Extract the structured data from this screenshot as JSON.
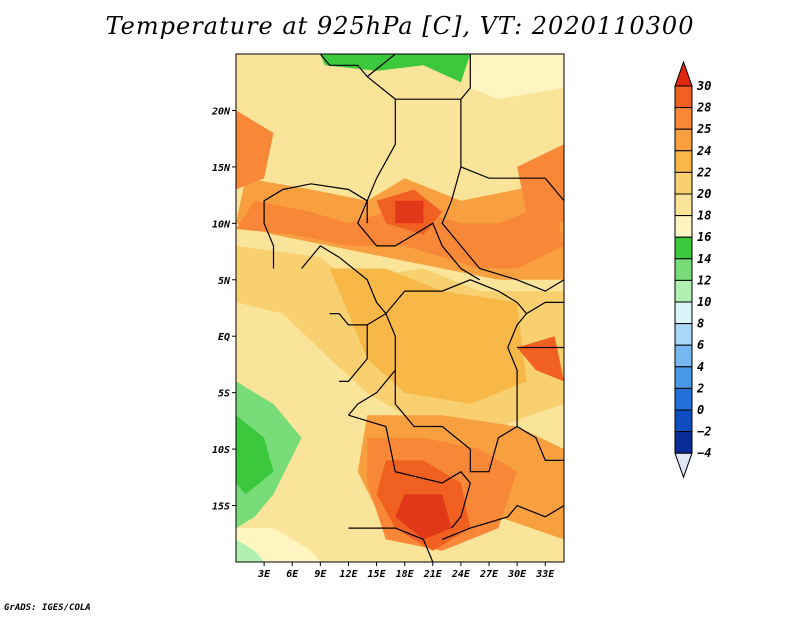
{
  "title": "Temperature at 925hPa [C], VT: 2020110300",
  "credit": "GrADS: IGES/COLA",
  "map": {
    "lat_range": [
      -20,
      25
    ],
    "lon_range": [
      0,
      35
    ],
    "lat_ticks": [
      {
        "value": 20,
        "label": "20N"
      },
      {
        "value": 15,
        "label": "15N"
      },
      {
        "value": 10,
        "label": "10N"
      },
      {
        "value": 5,
        "label": "5N"
      },
      {
        "value": 0,
        "label": "EQ"
      },
      {
        "value": -5,
        "label": "5S"
      },
      {
        "value": -10,
        "label": "10S"
      },
      {
        "value": -15,
        "label": "15S"
      }
    ],
    "lon_ticks": [
      {
        "value": 3,
        "label": "3E"
      },
      {
        "value": 6,
        "label": "6E"
      },
      {
        "value": 9,
        "label": "9E"
      },
      {
        "value": 12,
        "label": "12E"
      },
      {
        "value": 15,
        "label": "15E"
      },
      {
        "value": 18,
        "label": "18E"
      },
      {
        "value": 21,
        "label": "21E"
      },
      {
        "value": 24,
        "label": "24E"
      },
      {
        "value": 27,
        "label": "27E"
      },
      {
        "value": 30,
        "label": "30E"
      },
      {
        "value": 33,
        "label": "33E"
      }
    ]
  },
  "colorbar": {
    "levels": [
      "30",
      "28",
      "25",
      "24",
      "22",
      "20",
      "18",
      "16",
      "14",
      "12",
      "10",
      "8",
      "6",
      "4",
      "2",
      "0",
      "−2",
      "−4"
    ],
    "colors": [
      "#f06020",
      "#f88838",
      "#f8a040",
      "#f8b848",
      "#f8d070",
      "#fae49a",
      "#fff5c0",
      "#3cc83c",
      "#78dc78",
      "#b0f0b0",
      "#d8f4f8",
      "#a8d8f8",
      "#78b8f0",
      "#4898e8",
      "#2070d8",
      "#0f4cc0",
      "#0a2c98"
    ],
    "top_arrow_color": "#e02810",
    "bottom_arrow_color": "#e0e8f8"
  },
  "zones": [
    {
      "color": "#fae49a",
      "points": [
        [
          0,
          25
        ],
        [
          35,
          25
        ],
        [
          35,
          -20
        ],
        [
          0,
          -20
        ]
      ]
    },
    {
      "color": "#f8d070",
      "points": [
        [
          0,
          8
        ],
        [
          9,
          7
        ],
        [
          12,
          5
        ],
        [
          20,
          6
        ],
        [
          26,
          4
        ],
        [
          35,
          4
        ],
        [
          35,
          -6
        ],
        [
          28,
          -8
        ],
        [
          20,
          -8
        ],
        [
          14,
          -5
        ],
        [
          10,
          -2
        ],
        [
          5,
          2
        ],
        [
          0,
          3
        ]
      ]
    },
    {
      "color": "#f8b848",
      "points": [
        [
          10,
          6
        ],
        [
          16,
          6
        ],
        [
          22,
          4
        ],
        [
          30,
          3
        ],
        [
          31,
          -4
        ],
        [
          25,
          -6
        ],
        [
          18,
          -5
        ],
        [
          14,
          -2
        ],
        [
          12,
          2
        ]
      ]
    },
    {
      "color": "#f8a040",
      "points": [
        [
          1,
          14
        ],
        [
          8,
          13
        ],
        [
          14,
          12
        ],
        [
          18,
          14
        ],
        [
          24,
          12
        ],
        [
          30,
          13
        ],
        [
          35,
          14
        ],
        [
          35,
          5
        ],
        [
          28,
          5
        ],
        [
          22,
          6
        ],
        [
          16,
          7
        ],
        [
          10,
          8
        ],
        [
          4,
          9
        ],
        [
          0,
          10
        ]
      ]
    },
    {
      "color": "#f88838",
      "points": [
        [
          2,
          12
        ],
        [
          8,
          11
        ],
        [
          12,
          10
        ],
        [
          16,
          11
        ],
        [
          20,
          11
        ],
        [
          24,
          10
        ],
        [
          28,
          10
        ],
        [
          34,
          12
        ],
        [
          35,
          8
        ],
        [
          30,
          6
        ],
        [
          26,
          6
        ],
        [
          22,
          7
        ],
        [
          18,
          8
        ],
        [
          12,
          8
        ],
        [
          6,
          9
        ],
        [
          0,
          9.5
        ]
      ]
    },
    {
      "color": "#f88838",
      "points": [
        [
          0,
          20
        ],
        [
          4,
          18
        ],
        [
          3,
          14
        ],
        [
          0,
          13
        ]
      ]
    },
    {
      "color": "#f88838",
      "points": [
        [
          30,
          15
        ],
        [
          35,
          17
        ],
        [
          35,
          10
        ],
        [
          31,
          11
        ]
      ]
    },
    {
      "color": "#f8a040",
      "points": [
        [
          14,
          -7
        ],
        [
          22,
          -7
        ],
        [
          30,
          -8
        ],
        [
          35,
          -10
        ],
        [
          35,
          -18
        ],
        [
          28,
          -16
        ],
        [
          22,
          -18
        ],
        [
          16,
          -17
        ],
        [
          13,
          -12
        ]
      ]
    },
    {
      "color": "#f88838",
      "points": [
        [
          14,
          -9
        ],
        [
          20,
          -9
        ],
        [
          26,
          -10
        ],
        [
          30,
          -12
        ],
        [
          28,
          -17
        ],
        [
          22,
          -19
        ],
        [
          16,
          -18
        ],
        [
          14,
          -13
        ]
      ]
    },
    {
      "color": "#f06020",
      "points": [
        [
          16,
          -11
        ],
        [
          20,
          -11
        ],
        [
          24,
          -13
        ],
        [
          25,
          -17
        ],
        [
          21,
          -19
        ],
        [
          17,
          -17
        ],
        [
          15,
          -14
        ]
      ]
    },
    {
      "color": "#e03818",
      "points": [
        [
          18,
          -14
        ],
        [
          22,
          -14
        ],
        [
          23,
          -17
        ],
        [
          20,
          -18
        ],
        [
          17,
          -16
        ]
      ]
    },
    {
      "color": "#f06020",
      "points": [
        [
          15,
          12
        ],
        [
          19,
          13
        ],
        [
          22,
          11
        ],
        [
          20,
          9
        ],
        [
          16,
          10
        ]
      ]
    },
    {
      "color": "#e03818",
      "points": [
        [
          17,
          12
        ],
        [
          20,
          12
        ],
        [
          20,
          10
        ],
        [
          17,
          10
        ]
      ]
    },
    {
      "color": "#f06020",
      "points": [
        [
          30,
          -1
        ],
        [
          34,
          0
        ],
        [
          35,
          -4
        ],
        [
          32,
          -3
        ]
      ]
    },
    {
      "color": "#3cc83c",
      "points": [
        [
          9,
          25
        ],
        [
          9.5,
          24
        ],
        [
          15,
          23.5
        ],
        [
          20,
          24
        ],
        [
          24,
          22.5
        ],
        [
          25,
          25
        ]
      ]
    },
    {
      "color": "#fff5c0",
      "points": [
        [
          25,
          25
        ],
        [
          35,
          25
        ],
        [
          35,
          22
        ],
        [
          28,
          21
        ],
        [
          25,
          22
        ]
      ]
    },
    {
      "color": "#78dc78",
      "points": [
        [
          0,
          -4
        ],
        [
          4,
          -6
        ],
        [
          7,
          -9
        ],
        [
          4,
          -14
        ],
        [
          2,
          -16
        ],
        [
          0,
          -17
        ]
      ]
    },
    {
      "color": "#3cc83c",
      "points": [
        [
          0,
          -7
        ],
        [
          3,
          -9
        ],
        [
          4,
          -12
        ],
        [
          1,
          -14
        ],
        [
          0,
          -13
        ]
      ]
    },
    {
      "color": "#fff5c0",
      "points": [
        [
          0,
          -17
        ],
        [
          4,
          -17
        ],
        [
          8,
          -19
        ],
        [
          9,
          -20
        ],
        [
          0,
          -20
        ]
      ]
    },
    {
      "color": "#b0f0b0",
      "points": [
        [
          0,
          -18
        ],
        [
          2,
          -19
        ],
        [
          3,
          -20
        ],
        [
          0,
          -20
        ]
      ]
    }
  ],
  "borders": [
    [
      [
        9,
        25
      ],
      [
        10,
        24
      ],
      [
        13,
        24
      ],
      [
        14,
        23
      ],
      [
        17,
        21
      ],
      [
        17,
        17
      ],
      [
        15,
        14
      ],
      [
        14,
        12
      ],
      [
        14,
        10
      ]
    ],
    [
      [
        14,
        23
      ],
      [
        17,
        25
      ]
    ],
    [
      [
        17,
        21
      ],
      [
        24,
        21
      ],
      [
        24,
        15
      ],
      [
        23,
        12
      ],
      [
        22,
        10
      ],
      [
        24,
        8
      ],
      [
        26,
        6
      ],
      [
        30,
        5
      ],
      [
        33,
        4
      ],
      [
        35,
        5
      ]
    ],
    [
      [
        24,
        21
      ],
      [
        25,
        22
      ],
      [
        25,
        25
      ]
    ],
    [
      [
        24,
        15
      ],
      [
        27,
        14
      ],
      [
        33,
        14
      ],
      [
        35,
        12
      ]
    ],
    [
      [
        3,
        12
      ],
      [
        5,
        13
      ],
      [
        8,
        13.5
      ],
      [
        12,
        13
      ],
      [
        14,
        12
      ],
      [
        13,
        10
      ],
      [
        15,
        8
      ],
      [
        17,
        8
      ],
      [
        19,
        9
      ],
      [
        21,
        10
      ],
      [
        22,
        8
      ],
      [
        24,
        6
      ],
      [
        26,
        5
      ]
    ],
    [
      [
        3,
        12
      ],
      [
        3,
        10
      ],
      [
        4,
        8
      ],
      [
        4,
        6
      ]
    ],
    [
      [
        7,
        6
      ],
      [
        9,
        8
      ],
      [
        11,
        7
      ],
      [
        14,
        5
      ],
      [
        15,
        3
      ],
      [
        16,
        2
      ],
      [
        18,
        4
      ],
      [
        22,
        4
      ],
      [
        25,
        5
      ],
      [
        28,
        4
      ],
      [
        30,
        3
      ],
      [
        31,
        2
      ]
    ],
    [
      [
        10,
        2
      ],
      [
        11,
        2
      ],
      [
        12,
        1
      ],
      [
        14,
        1
      ],
      [
        14,
        -2
      ],
      [
        12,
        -4
      ],
      [
        11,
        -4
      ]
    ],
    [
      [
        14,
        1
      ],
      [
        16,
        2
      ],
      [
        17,
        0
      ],
      [
        17,
        -3
      ],
      [
        15,
        -5
      ],
      [
        13,
        -6
      ],
      [
        12,
        -7
      ]
    ],
    [
      [
        17,
        -3
      ],
      [
        17,
        -6
      ],
      [
        19,
        -8
      ],
      [
        22,
        -8
      ],
      [
        25,
        -10
      ],
      [
        25,
        -12
      ],
      [
        27,
        -12
      ],
      [
        28,
        -9
      ],
      [
        30,
        -8
      ],
      [
        30,
        -3
      ],
      [
        29,
        -1
      ],
      [
        30,
        1
      ],
      [
        31,
        2
      ]
    ],
    [
      [
        12,
        -7
      ],
      [
        16,
        -8
      ],
      [
        17,
        -12
      ],
      [
        22,
        -13
      ],
      [
        24,
        -12
      ],
      [
        25,
        -13
      ],
      [
        24,
        -16
      ],
      [
        23,
        -17
      ]
    ],
    [
      [
        12,
        -17
      ],
      [
        17,
        -17
      ],
      [
        20,
        -18
      ],
      [
        21,
        -20
      ]
    ],
    [
      [
        22,
        -18
      ],
      [
        25,
        -17
      ],
      [
        29,
        -16
      ],
      [
        30,
        -15
      ],
      [
        33,
        -16
      ],
      [
        35,
        -15
      ]
    ],
    [
      [
        30,
        -8
      ],
      [
        32,
        -9
      ],
      [
        33,
        -11
      ],
      [
        35,
        -11
      ]
    ],
    [
      [
        30,
        -1
      ],
      [
        33,
        -1
      ],
      [
        35,
        -1
      ]
    ],
    [
      [
        31,
        2
      ],
      [
        33,
        3
      ],
      [
        35,
        3
      ]
    ]
  ]
}
